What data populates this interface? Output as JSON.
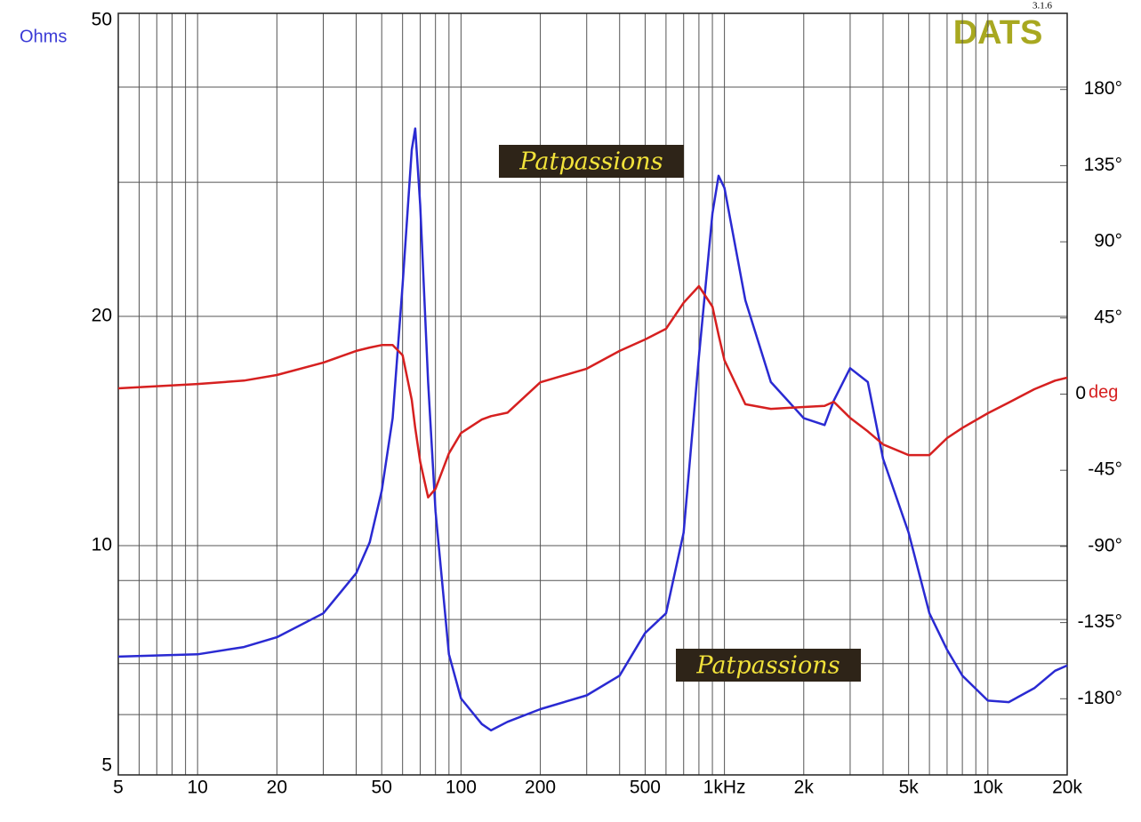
{
  "chart_data": {
    "type": "line",
    "y_label": "Ohms",
    "y2_label": "deg",
    "brand": "DATS",
    "version": "3.1.6",
    "watermarks": [
      "Patpassions",
      "Patpassions"
    ],
    "xlog": true,
    "ylog": true,
    "grid": true,
    "xlim": [
      5,
      20000
    ],
    "xticks": [
      5,
      10,
      20,
      50,
      100,
      200,
      500,
      {
        "value": 1000,
        "label": "1kHz"
      },
      {
        "value": 2000,
        "label": "2k"
      },
      {
        "value": 5000,
        "label": "5k"
      },
      {
        "value": 10000,
        "label": "10k"
      },
      {
        "value": 20000,
        "label": "20k"
      }
    ],
    "x_minor_ticks": [
      6,
      7,
      8,
      9,
      30,
      40,
      60,
      70,
      80,
      90,
      300,
      400,
      600,
      700,
      800,
      900,
      3000,
      4000,
      6000,
      7000,
      8000,
      9000
    ],
    "ylim": [
      5,
      50
    ],
    "yticks": [
      5,
      10,
      20,
      50
    ],
    "y_minor_ticks": [
      6,
      7,
      8,
      9,
      30,
      40
    ],
    "y2lim": [
      -225,
      225
    ],
    "y2ticks": [
      {
        "value": 180,
        "label": "180°"
      },
      {
        "value": 135,
        "label": "135°"
      },
      {
        "value": 90,
        "label": "90°"
      },
      {
        "value": 45,
        "label": "45°"
      },
      0,
      {
        "value": -45,
        "label": "-45°"
      },
      {
        "value": -90,
        "label": "-90°"
      },
      {
        "value": -135,
        "label": "-135°"
      },
      {
        "value": -180,
        "label": "-180°"
      }
    ],
    "x": [
      5,
      10,
      15,
      20,
      30,
      40,
      45,
      50,
      55,
      60,
      65,
      67,
      70,
      75,
      80,
      90,
      100,
      120,
      130,
      150,
      200,
      300,
      400,
      500,
      600,
      700,
      800,
      900,
      950,
      1000,
      1200,
      1500,
      2000,
      2400,
      2600,
      3000,
      3500,
      4000,
      5000,
      6000,
      7000,
      8000,
      10000,
      12000,
      15000,
      18000,
      20000
    ],
    "series": [
      {
        "color": "#2a2ad2",
        "values": [
          7.15,
          7.2,
          7.36,
          7.58,
          8.15,
          9.2,
          10.1,
          11.8,
          14.7,
          22,
          33.1,
          35.3,
          28,
          16.4,
          11.1,
          7.2,
          6.3,
          5.83,
          5.72,
          5.87,
          6.1,
          6.36,
          6.75,
          7.68,
          8.15,
          10.4,
          17.7,
          27.3,
          30.6,
          29.5,
          21,
          16.4,
          14.7,
          14.4,
          15.5,
          17.1,
          16.4,
          13,
          10.4,
          8.15,
          7.3,
          6.75,
          6.26,
          6.23,
          6.5,
          6.85,
          6.96
        ]
      },
      {
        "color": "#d62020",
        "axis": "y2",
        "values": [
          3.4,
          6,
          8,
          11.3,
          18.6,
          25.5,
          27.5,
          29,
          29,
          23,
          -3.4,
          -20,
          -40,
          -61,
          -56,
          -35,
          -23,
          -15,
          -13,
          -11,
          7,
          15,
          25.5,
          32.3,
          38.6,
          54,
          63.8,
          51.7,
          35,
          20,
          -6,
          -8.7,
          -7.6,
          -7,
          -4.5,
          -14,
          -22,
          -29.7,
          -36,
          -36,
          -26,
          -20,
          -11.3,
          -5,
          2.9,
          8,
          9.7
        ]
      }
    ]
  }
}
